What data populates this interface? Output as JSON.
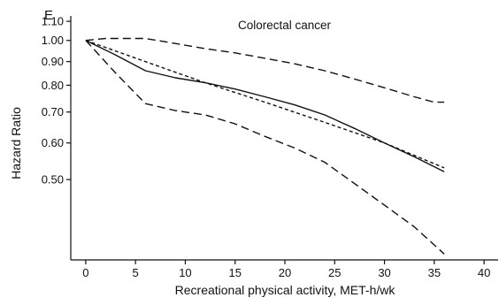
{
  "chart_data": {
    "type": "line",
    "panel_label": "E",
    "title": "Colorectal cancer",
    "xlabel": "Recreational physical activity, MET-h/wk",
    "ylabel": "Hazard Ratio",
    "xlim": [
      -1.5,
      41.5
    ],
    "ylim_log": [
      0.335,
      1.13
    ],
    "y_scale": "log",
    "x_ticks": [
      0,
      5,
      10,
      15,
      20,
      25,
      30,
      35,
      40
    ],
    "x_tick_labels": [
      "0",
      "5",
      "10",
      "15",
      "20",
      "25",
      "30",
      "35",
      "40"
    ],
    "y_ticks": [
      0.5,
      0.6,
      0.7,
      0.8,
      0.9,
      1.0,
      1.1
    ],
    "y_tick_labels": [
      "0.50",
      "0.60",
      "0.70",
      "0.80",
      "0.90",
      "1.00",
      "1.10"
    ],
    "grid": false,
    "series": [
      {
        "style": "solid",
        "x": [
          0,
          3,
          6,
          9,
          12,
          15,
          18,
          21,
          24,
          27,
          30,
          33,
          36
        ],
        "y": [
          1.0,
          0.93,
          0.86,
          0.83,
          0.81,
          0.785,
          0.755,
          0.725,
          0.69,
          0.645,
          0.6,
          0.56,
          0.52
        ]
      },
      {
        "style": "short-dash",
        "x": [
          0,
          6,
          12,
          18,
          24,
          30,
          36
        ],
        "y": [
          1.0,
          0.9,
          0.81,
          0.735,
          0.665,
          0.6,
          0.53
        ]
      },
      {
        "style": "long-dash",
        "x": [
          0,
          2,
          6,
          9,
          12,
          15,
          18,
          21,
          24,
          27,
          30,
          33,
          35,
          36
        ],
        "y": [
          1.0,
          1.01,
          1.01,
          0.985,
          0.96,
          0.94,
          0.915,
          0.89,
          0.86,
          0.825,
          0.79,
          0.755,
          0.735,
          0.735
        ]
      },
      {
        "style": "long-dash",
        "x": [
          0,
          3,
          6,
          9,
          12,
          15,
          18,
          21,
          24,
          27,
          30,
          33,
          36
        ],
        "y": [
          1.0,
          0.85,
          0.73,
          0.705,
          0.69,
          0.66,
          0.62,
          0.585,
          0.545,
          0.49,
          0.44,
          0.395,
          0.345
        ]
      }
    ]
  }
}
